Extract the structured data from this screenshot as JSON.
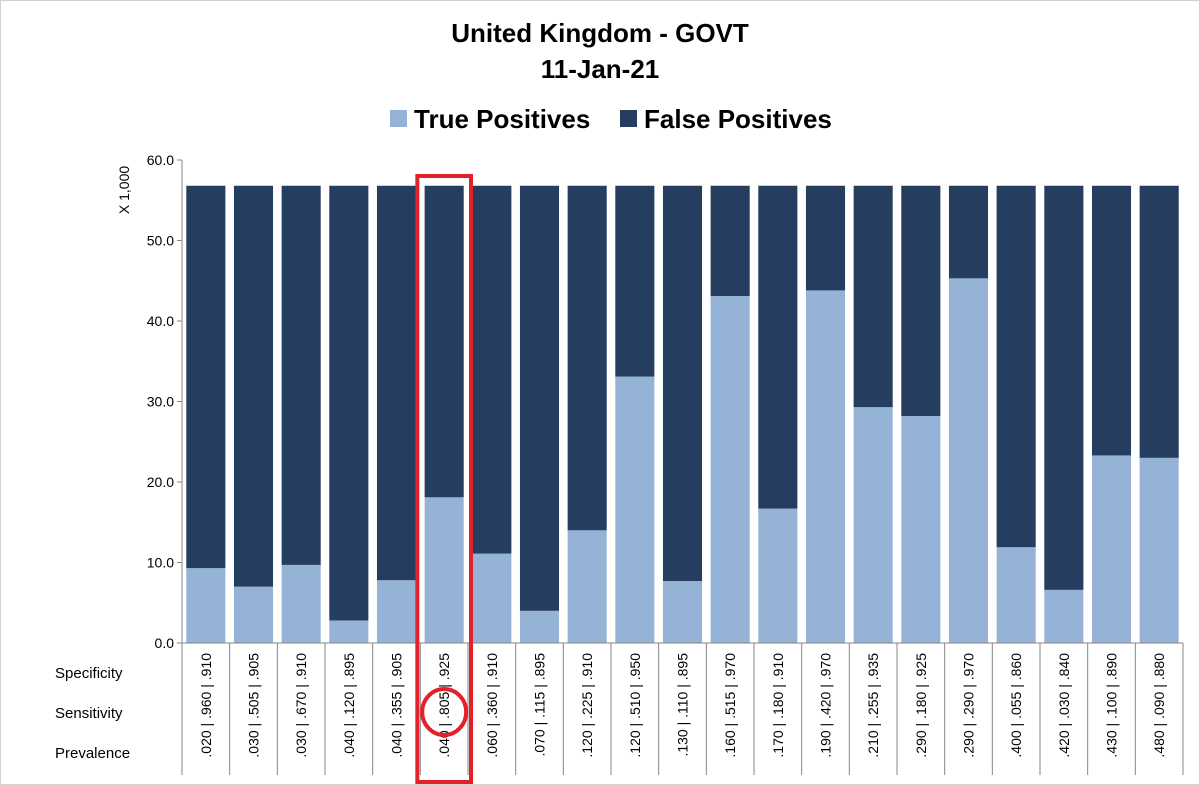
{
  "chart_data": {
    "type": "bar",
    "stacked": true,
    "title": "United Kingdom - GOVT",
    "subtitle": "11-Jan-21",
    "ylabel": "X 1,000",
    "ylim": [
      0,
      60
    ],
    "yticks": [
      "0.0",
      "10.0",
      "20.0",
      "30.0",
      "40.0",
      "50.0",
      "60.0"
    ],
    "legend_position": "top",
    "row_labels": [
      "Specificity",
      "Sensitivity",
      "Prevalence"
    ],
    "categories": [
      ".020 | .960 | .910",
      ".030 | .505 | .905",
      ".030 | .670 | .910",
      ".040 | .120 | .895",
      ".040 | .355 | .905",
      ".040 | .805 | .925",
      ".060 | .360 | .910",
      ".070 | .115 | .895",
      ".120 | .225 | .910",
      ".120 | .510 | .950",
      ".130 | .110 | .895",
      ".160 | .515 | .970",
      ".170 | .180 | .910",
      ".190 | .420 | .970",
      ".210 | .255 | .935",
      ".290 | .180 | .925",
      ".290 | .290 | .970",
      ".400 | .055 | .860",
      ".420 | .030 | .840",
      ".430 | .100 | .890",
      ".480 | .090 | .880"
    ],
    "series": [
      {
        "name": "True Positives",
        "color": "#95b3d7",
        "values": [
          9.3,
          7.0,
          9.7,
          2.8,
          7.8,
          18.1,
          11.1,
          4.0,
          14.0,
          33.1,
          7.7,
          43.1,
          16.7,
          43.8,
          29.3,
          28.2,
          45.3,
          11.9,
          6.6,
          23.3,
          23.0
        ]
      },
      {
        "name": "False Positives",
        "color": "#253e60",
        "values": [
          47.5,
          49.8,
          47.1,
          54.0,
          49.0,
          38.7,
          45.7,
          52.8,
          42.8,
          23.7,
          49.1,
          13.7,
          40.1,
          13.0,
          27.5,
          28.6,
          11.5,
          44.9,
          50.2,
          33.5,
          33.8
        ]
      }
    ],
    "highlight": {
      "category": ".040 | .805 | .925",
      "circled_value": ".805",
      "color": "#e3212b"
    }
  }
}
